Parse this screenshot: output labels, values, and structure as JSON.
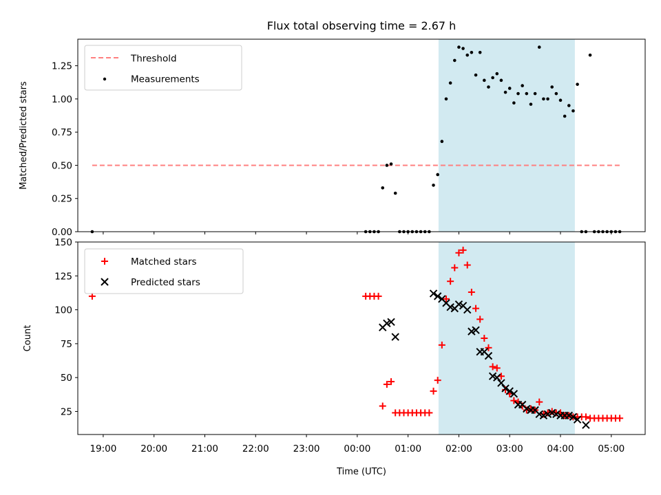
{
  "figure": {
    "title": "Flux total observing time = 2.67 h"
  },
  "chart_data": [
    {
      "type": "scatter",
      "panel": "top",
      "ylabel": "Matched/Predicted stars",
      "xlabel": "",
      "ylim": [
        0,
        1.45
      ],
      "yticks": [
        0.0,
        0.25,
        0.5,
        0.75,
        1.0,
        1.25
      ],
      "ytick_labels": [
        "0.00",
        "0.25",
        "0.50",
        "0.75",
        "1.00",
        "1.25"
      ],
      "xlim": [
        "18:30",
        "05:40"
      ],
      "grid": false,
      "legend_position": "upper-left",
      "shaded_interval": {
        "start": "01:36",
        "end": "04:17",
        "color": "#add8e6"
      },
      "series": [
        {
          "name": "Threshold",
          "style": "dashed-line",
          "color": "#ff7f7f",
          "x": [
            "18:47",
            "05:12"
          ],
          "y": [
            0.5,
            0.5
          ]
        },
        {
          "name": "Measurements",
          "style": "dot",
          "color": "#000000",
          "x": [
            "18:47",
            "00:10",
            "00:15",
            "00:20",
            "00:25",
            "00:30",
            "00:35",
            "00:40",
            "00:45",
            "00:50",
            "00:55",
            "01:00",
            "01:05",
            "01:10",
            "01:15",
            "01:20",
            "01:25",
            "01:30",
            "01:35",
            "01:40",
            "01:45",
            "01:50",
            "01:55",
            "02:00",
            "02:05",
            "02:10",
            "02:15",
            "02:20",
            "02:25",
            "02:30",
            "02:35",
            "02:40",
            "02:45",
            "02:50",
            "02:55",
            "03:00",
            "03:05",
            "03:10",
            "03:15",
            "03:20",
            "03:25",
            "03:30",
            "03:35",
            "03:40",
            "03:45",
            "03:50",
            "03:55",
            "04:00",
            "04:05",
            "04:10",
            "04:15",
            "04:20",
            "04:25",
            "04:30",
            "04:35",
            "04:40",
            "04:45",
            "04:50",
            "04:55",
            "05:00",
            "05:05",
            "05:10"
          ],
          "y": [
            0,
            0,
            0,
            0,
            0,
            0.33,
            0.5,
            0.51,
            0.29,
            0,
            0,
            0,
            0,
            0,
            0,
            0,
            0,
            0.35,
            0.43,
            0.68,
            1.0,
            1.12,
            1.29,
            1.39,
            1.38,
            1.33,
            1.35,
            1.18,
            1.35,
            1.14,
            1.09,
            1.16,
            1.19,
            1.14,
            1.05,
            1.08,
            0.97,
            1.04,
            1.1,
            1.04,
            0.96,
            1.04,
            1.39,
            1.0,
            1.0,
            1.09,
            1.04,
            0.99,
            0.87,
            0.95,
            0.91,
            1.11,
            0,
            0,
            1.33,
            0,
            0,
            0,
            0,
            0,
            0,
            0
          ]
        }
      ]
    },
    {
      "type": "scatter",
      "panel": "bottom",
      "ylabel": "Count",
      "xlabel": "Time (UTC)",
      "ylim": [
        8,
        150
      ],
      "yticks": [
        25,
        50,
        75,
        100,
        125,
        150
      ],
      "ytick_labels": [
        "25",
        "50",
        "75",
        "100",
        "125",
        "150"
      ],
      "xlim": [
        "18:30",
        "05:40"
      ],
      "xticks": [
        "19:00",
        "20:00",
        "21:00",
        "22:00",
        "23:00",
        "00:00",
        "01:00",
        "02:00",
        "03:00",
        "04:00",
        "05:00"
      ],
      "xtick_labels": [
        "19:00",
        "20:00",
        "21:00",
        "22:00",
        "23:00",
        "00:00",
        "01:00",
        "02:00",
        "03:00",
        "04:00",
        "05:00"
      ],
      "grid": false,
      "legend_position": "upper-left",
      "shaded_interval": {
        "start": "01:36",
        "end": "04:17",
        "color": "#add8e6"
      },
      "series": [
        {
          "name": "Matched stars",
          "marker": "plus",
          "color": "#ff0000",
          "x": [
            "18:47",
            "00:10",
            "00:15",
            "00:20",
            "00:25",
            "00:30",
            "00:35",
            "00:40",
            "00:45",
            "00:50",
            "00:55",
            "01:00",
            "01:05",
            "01:10",
            "01:15",
            "01:20",
            "01:25",
            "01:30",
            "01:35",
            "01:40",
            "01:45",
            "01:50",
            "01:55",
            "02:00",
            "02:05",
            "02:10",
            "02:15",
            "02:20",
            "02:25",
            "02:30",
            "02:35",
            "02:40",
            "02:45",
            "02:50",
            "02:55",
            "03:00",
            "03:05",
            "03:10",
            "03:15",
            "03:20",
            "03:25",
            "03:30",
            "03:35",
            "03:40",
            "03:45",
            "03:50",
            "03:55",
            "04:00",
            "04:05",
            "04:10",
            "04:15",
            "04:20",
            "04:25",
            "04:30",
            "04:35",
            "04:40",
            "04:45",
            "04:50",
            "04:55",
            "05:00",
            "05:05",
            "05:10"
          ],
          "y": [
            110,
            110,
            110,
            110,
            110,
            29,
            45,
            47,
            24,
            24,
            24,
            24,
            24,
            24,
            24,
            24,
            24,
            40,
            48,
            74,
            108,
            121,
            131,
            142,
            144,
            133,
            113,
            101,
            93,
            79,
            72,
            58,
            57,
            51,
            41,
            38,
            33,
            32,
            29,
            26,
            27,
            26,
            32,
            23,
            24,
            25,
            24,
            24,
            22,
            22,
            21,
            21,
            21,
            21,
            20,
            20,
            20,
            20,
            20,
            20,
            20,
            20
          ]
        },
        {
          "name": "Predicted stars",
          "marker": "x",
          "color": "#000000",
          "x": [
            "00:30",
            "00:35",
            "00:40",
            "00:45",
            "01:30",
            "01:35",
            "01:40",
            "01:45",
            "01:50",
            "01:55",
            "02:00",
            "02:05",
            "02:10",
            "02:15",
            "02:20",
            "02:25",
            "02:30",
            "02:35",
            "02:40",
            "02:45",
            "02:50",
            "02:55",
            "03:00",
            "03:05",
            "03:10",
            "03:15",
            "03:20",
            "03:25",
            "03:30",
            "03:35",
            "03:40",
            "03:45",
            "03:50",
            "03:55",
            "04:00",
            "04:05",
            "04:10",
            "04:15",
            "04:20",
            "04:30"
          ],
          "y": [
            87,
            90,
            91,
            80,
            112,
            110,
            108,
            105,
            102,
            101,
            104,
            103,
            100,
            84,
            85,
            69,
            69,
            66,
            51,
            50,
            46,
            42,
            40,
            38,
            30,
            30,
            27,
            26,
            26,
            23,
            22,
            23,
            24,
            23,
            22,
            22,
            22,
            21,
            19,
            15
          ]
        }
      ]
    }
  ]
}
